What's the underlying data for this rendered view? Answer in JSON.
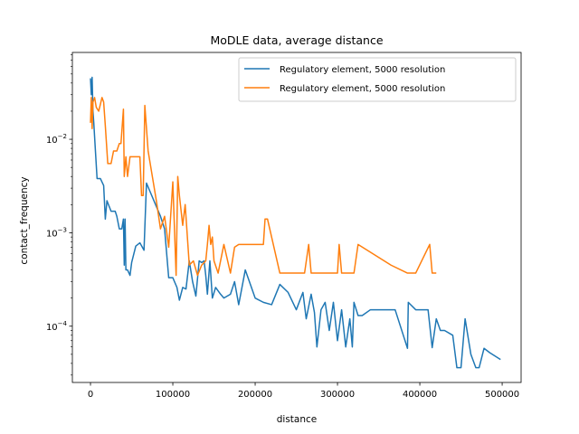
{
  "chart_data": {
    "type": "line",
    "title": "MoDLE data, average distance",
    "xlabel": "distance",
    "ylabel": "contact_frequency",
    "xlim": [
      -22000,
      523000
    ],
    "ylim": [
      2.5e-05,
      0.085
    ],
    "yscale": "log",
    "grid": false,
    "legend_position": "top-right",
    "x_ticks": [
      {
        "value": 0,
        "label": "0"
      },
      {
        "value": 100000,
        "label": "100000"
      },
      {
        "value": 200000,
        "label": "200000"
      },
      {
        "value": 300000,
        "label": "300000"
      },
      {
        "value": 400000,
        "label": "400000"
      },
      {
        "value": 500000,
        "label": "500000"
      }
    ],
    "y_ticks": [
      {
        "value": 0.0001,
        "base": "10",
        "exp": "−4"
      },
      {
        "value": 0.001,
        "base": "10",
        "exp": "−3"
      },
      {
        "value": 0.01,
        "base": "10",
        "exp": "−2"
      }
    ],
    "series": [
      {
        "name": "Regulatory element, 5000 resolution",
        "color": "#1f77b4",
        "points": [
          [
            0,
            0.045
          ],
          [
            1000,
            0.03
          ],
          [
            2000,
            0.046
          ],
          [
            3000,
            0.02
          ],
          [
            4000,
            0.015
          ],
          [
            6000,
            0.0075
          ],
          [
            8000,
            0.0038
          ],
          [
            12000,
            0.0038
          ],
          [
            16000,
            0.0032
          ],
          [
            18000,
            0.0014
          ],
          [
            20000,
            0.0022
          ],
          [
            25000,
            0.0017
          ],
          [
            30000,
            0.0017
          ],
          [
            32000,
            0.0015
          ],
          [
            35000,
            0.0011
          ],
          [
            38000,
            0.0011
          ],
          [
            40000,
            0.0014
          ],
          [
            41000,
            0.00045
          ],
          [
            42000,
            0.0014
          ],
          [
            43000,
            0.0004
          ],
          [
            45000,
            0.0004
          ],
          [
            48000,
            0.00035
          ],
          [
            50000,
            0.00048
          ],
          [
            55000,
            0.00072
          ],
          [
            60000,
            0.00078
          ],
          [
            65000,
            0.00065
          ],
          [
            68000,
            0.0034
          ],
          [
            85000,
            0.0015
          ],
          [
            90000,
            0.0011
          ],
          [
            95000,
            0.00033
          ],
          [
            100000,
            0.00033
          ],
          [
            105000,
            0.00026
          ],
          [
            108000,
            0.00019
          ],
          [
            112000,
            0.00026
          ],
          [
            116000,
            0.00025
          ],
          [
            120000,
            0.0005
          ],
          [
            124000,
            0.0003
          ],
          [
            128000,
            0.00021
          ],
          [
            132000,
            0.0005
          ],
          [
            135000,
            0.00048
          ],
          [
            138000,
            0.0005
          ],
          [
            140000,
            0.00035
          ],
          [
            142000,
            0.00022
          ],
          [
            145000,
            0.0005
          ],
          [
            148000,
            0.0002
          ],
          [
            152000,
            0.00026
          ],
          [
            158000,
            0.00022
          ],
          [
            162000,
            0.0002
          ],
          [
            170000,
            0.00022
          ],
          [
            175000,
            0.0003
          ],
          [
            180000,
            0.00017
          ],
          [
            188000,
            0.0004
          ],
          [
            200000,
            0.0002
          ],
          [
            210000,
            0.00018
          ],
          [
            220000,
            0.00017
          ],
          [
            230000,
            0.00028
          ],
          [
            240000,
            0.00023
          ],
          [
            250000,
            0.00015
          ],
          [
            258000,
            0.00023
          ],
          [
            262000,
            0.00012
          ],
          [
            268000,
            0.00022
          ],
          [
            272000,
            0.00014
          ],
          [
            275000,
            6e-05
          ],
          [
            280000,
            0.00015
          ],
          [
            285000,
            0.00018
          ],
          [
            290000,
            9e-05
          ],
          [
            295000,
            0.00018
          ],
          [
            300000,
            7e-05
          ],
          [
            305000,
            0.00015
          ],
          [
            310000,
            6e-05
          ],
          [
            315000,
            0.00012
          ],
          [
            318000,
            6e-05
          ],
          [
            320000,
            0.00018
          ],
          [
            325000,
            0.00013
          ],
          [
            330000,
            0.00013
          ],
          [
            340000,
            0.00015
          ],
          [
            355000,
            0.00015
          ],
          [
            370000,
            0.00015
          ],
          [
            385000,
            5.8e-05
          ],
          [
            386000,
            0.00018
          ],
          [
            395000,
            0.00015
          ],
          [
            410000,
            0.00015
          ],
          [
            415000,
            5.9e-05
          ],
          [
            420000,
            0.00012
          ],
          [
            425000,
            9e-05
          ],
          [
            430000,
            9e-05
          ],
          [
            440000,
            8e-05
          ],
          [
            445000,
            3.6e-05
          ],
          [
            450000,
            3.6e-05
          ],
          [
            455000,
            0.00012
          ],
          [
            462000,
            5e-05
          ],
          [
            468000,
            3.6e-05
          ],
          [
            472000,
            3.6e-05
          ],
          [
            478000,
            5.8e-05
          ],
          [
            485000,
            5.2e-05
          ],
          [
            498000,
            4.4e-05
          ]
        ]
      },
      {
        "name": "Regulatory element, 5000 resolution",
        "color": "#ff7f0e",
        "points": [
          [
            0,
            0.015
          ],
          [
            1000,
            0.028
          ],
          [
            2000,
            0.013
          ],
          [
            3000,
            0.025
          ],
          [
            5000,
            0.028
          ],
          [
            7000,
            0.022
          ],
          [
            10000,
            0.02
          ],
          [
            14000,
            0.028
          ],
          [
            16000,
            0.025
          ],
          [
            18000,
            0.014
          ],
          [
            21000,
            0.0055
          ],
          [
            25000,
            0.0055
          ],
          [
            28000,
            0.0075
          ],
          [
            32000,
            0.0075
          ],
          [
            35000,
            0.009
          ],
          [
            37000,
            0.009
          ],
          [
            40000,
            0.021
          ],
          [
            41000,
            0.004
          ],
          [
            43000,
            0.0065
          ],
          [
            45000,
            0.004
          ],
          [
            48000,
            0.0065
          ],
          [
            60000,
            0.0065
          ],
          [
            62000,
            0.0025
          ],
          [
            64000,
            0.0025
          ],
          [
            66000,
            0.023
          ],
          [
            70000,
            0.0075
          ],
          [
            80000,
            0.0022
          ],
          [
            85000,
            0.0011
          ],
          [
            90000,
            0.0015
          ],
          [
            95000,
            0.0007
          ],
          [
            100000,
            0.0035
          ],
          [
            104000,
            0.00035
          ],
          [
            106000,
            0.004
          ],
          [
            108000,
            0.0025
          ],
          [
            112000,
            0.0012
          ],
          [
            115000,
            0.002
          ],
          [
            120000,
            0.00045
          ],
          [
            125000,
            0.0005
          ],
          [
            130000,
            0.00035
          ],
          [
            135000,
            0.00045
          ],
          [
            140000,
            0.0005
          ],
          [
            142000,
            0.00075
          ],
          [
            144000,
            0.0012
          ],
          [
            146000,
            0.00075
          ],
          [
            148000,
            0.0009
          ],
          [
            150000,
            0.0005
          ],
          [
            155000,
            0.00037
          ],
          [
            162000,
            0.00075
          ],
          [
            170000,
            0.00037
          ],
          [
            175000,
            0.0007
          ],
          [
            180000,
            0.00075
          ],
          [
            210000,
            0.00075
          ],
          [
            212000,
            0.0014
          ],
          [
            215000,
            0.0014
          ],
          [
            230000,
            0.00037
          ],
          [
            260000,
            0.00037
          ],
          [
            265000,
            0.00075
          ],
          [
            268000,
            0.00037
          ],
          [
            300000,
            0.00037
          ],
          [
            302000,
            0.00075
          ],
          [
            305000,
            0.00037
          ],
          [
            320000,
            0.00037
          ],
          [
            325000,
            0.00075
          ],
          [
            365000,
            0.00045
          ],
          [
            385000,
            0.00037
          ],
          [
            395000,
            0.00037
          ],
          [
            412000,
            0.00075
          ],
          [
            415000,
            0.00037
          ],
          [
            420000,
            0.00037
          ]
        ]
      }
    ]
  }
}
